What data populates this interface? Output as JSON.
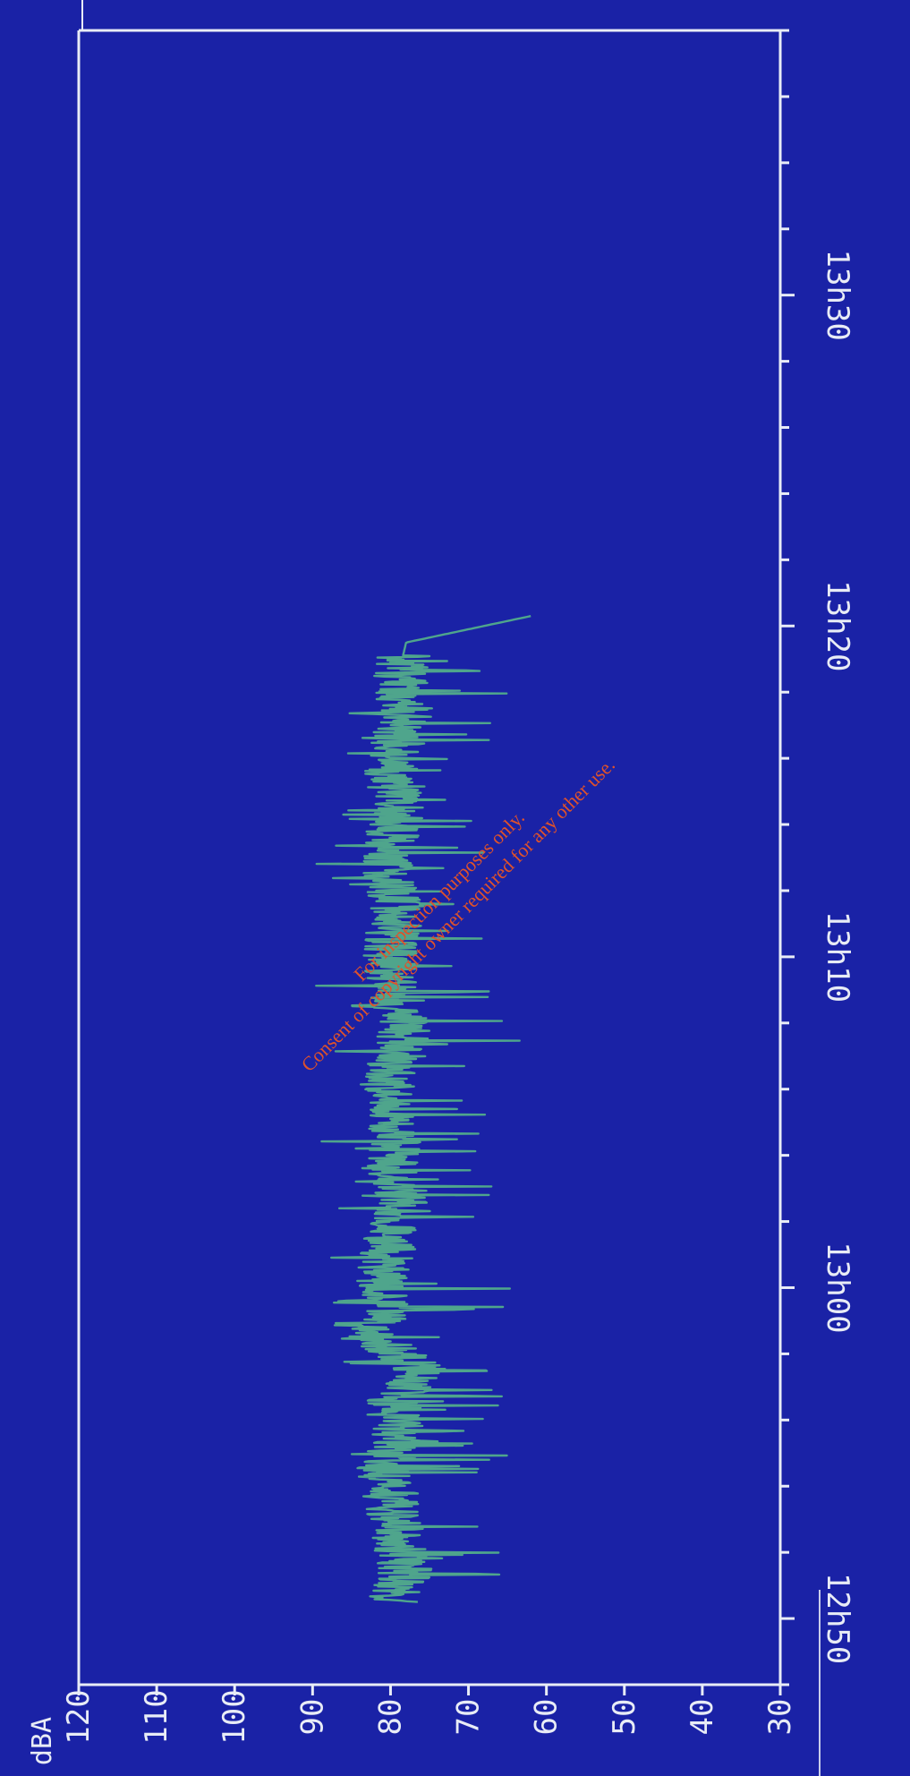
{
  "chart_data": {
    "type": "line",
    "ylabel": "dBA",
    "y_ticks": [
      120,
      110,
      100,
      90,
      80,
      70,
      60,
      50,
      40,
      30
    ],
    "ylim": [
      30,
      120
    ],
    "x_ticks": [
      "12h50",
      "13h00",
      "13h10",
      "13h20",
      "13h30"
    ],
    "x_tick_minutes": [
      0,
      10,
      20,
      30,
      40
    ],
    "xlim_minutes": [
      -2,
      48
    ],
    "data_range_minutes": [
      0.5,
      30.3
    ],
    "orientation": "rotated 90 degrees clockwise",
    "series": [
      {
        "time_minutes": [
          0.5,
          1.5,
          2.5,
          3.5,
          4.5,
          5.5,
          6.5,
          7.5,
          8.5,
          9.5,
          10.5,
          11.5,
          12.5,
          13.5,
          14.5,
          15.5,
          16.5,
          17.5,
          18.5,
          19.5,
          20.5,
          21.5,
          22.5,
          23.5,
          24.5,
          25.5,
          26.5,
          27.5,
          28.5,
          29.5,
          30.3
        ],
        "dBA": [
          80,
          78,
          79,
          80,
          81,
          79,
          80,
          76,
          82,
          80,
          81,
          80,
          78,
          80,
          79,
          81,
          80,
          78,
          79,
          80,
          80,
          79,
          81,
          80,
          79,
          80,
          79,
          78,
          79,
          78,
          62
        ]
      }
    ],
    "colors": {
      "background": "#1a22a6",
      "axes": "#e8ecf6",
      "series": "#4fa58c"
    }
  },
  "watermark": {
    "line1": "For inspection purposes only.",
    "line2": "Consent of copyright owner required for any other use."
  }
}
